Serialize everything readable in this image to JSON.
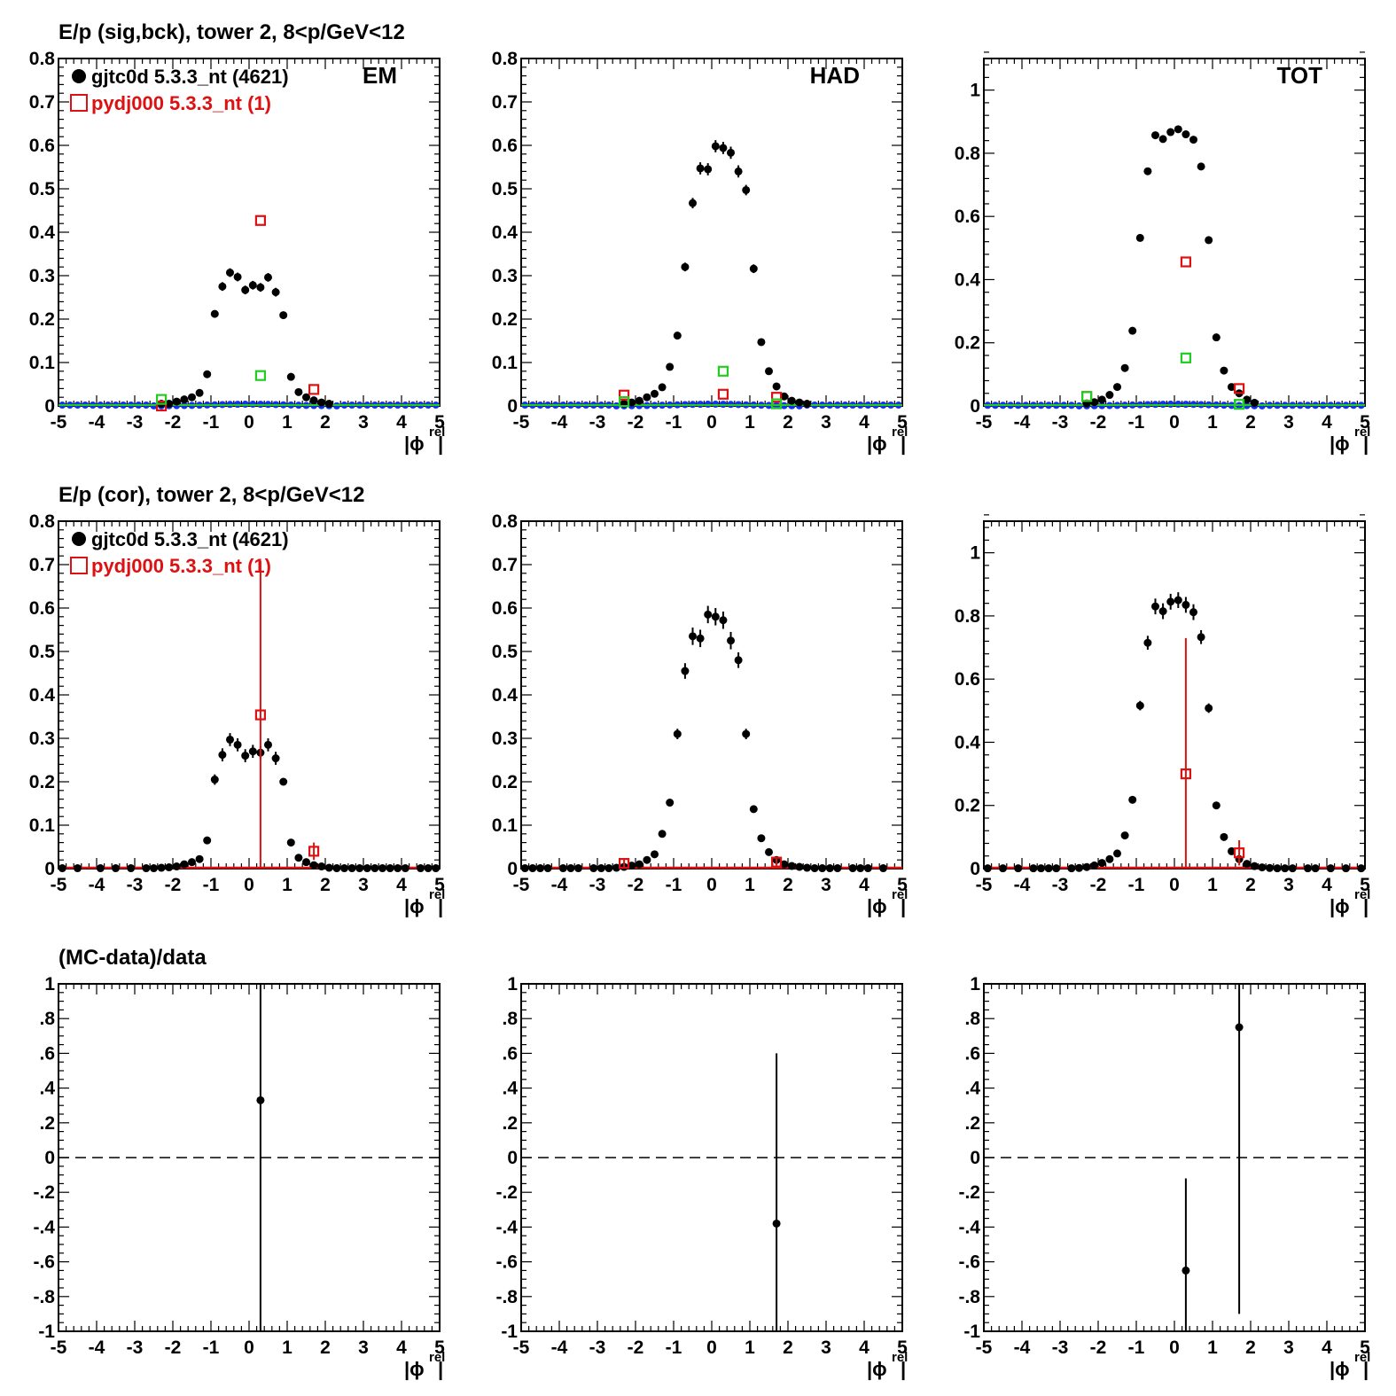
{
  "row_titles": [
    "E/p (sig,bck), tower 2,  8<p/GeV<12",
    "E/p (cor), tower 2,  8<p/GeV<12",
    "(MC-data)/data"
  ],
  "legend": {
    "data_label": "gjtc0d 5.3.3_nt (4621)",
    "mc_label": "pydj000 5.3.3_nt (1)"
  },
  "panel_tags": [
    "EM",
    "HAD",
    "TOT"
  ],
  "axis_label": {
    "main": "|ϕ",
    "superscript": "rel",
    "close": "|"
  },
  "colors": {
    "data": "#000000",
    "mc": "#dd1111",
    "background": "#1133ee",
    "signal_mc": "#22cc22",
    "axis": "#000000"
  },
  "chart_data": [
    {
      "id": "em-sigbck",
      "type": "scatter",
      "tag": "EM",
      "has_legend": true,
      "xlim": [
        -5,
        5
      ],
      "ylim": [
        0,
        0.8
      ],
      "yticks": [
        0,
        0.1,
        0.2,
        0.3,
        0.4,
        0.5,
        0.6,
        0.7,
        0.8
      ],
      "series": [
        {
          "name": "gjtc0d 5.3.3_nt (4621)",
          "style": "data",
          "x": [
            -2.3,
            -2.1,
            -1.9,
            -1.7,
            -1.5,
            -1.3,
            -1.1,
            -0.9,
            -0.7,
            -0.5,
            -0.3,
            -0.1,
            0.1,
            0.3,
            0.5,
            0.7,
            0.9,
            1.1,
            1.3,
            1.5,
            1.7,
            1.9,
            2.1
          ],
          "y": [
            0.005,
            0.005,
            0.01,
            0.015,
            0.02,
            0.03,
            0.073,
            0.212,
            0.275,
            0.307,
            0.297,
            0.267,
            0.278,
            0.273,
            0.296,
            0.262,
            0.209,
            0.067,
            0.032,
            0.02,
            0.013,
            0.008,
            0.005
          ],
          "err": [
            0,
            0,
            0,
            0,
            0,
            0,
            0,
            0.008,
            0.01,
            0.01,
            0.01,
            0.01,
            0.01,
            0.01,
            0.01,
            0.01,
            0.008,
            0,
            0,
            0,
            0,
            0,
            0
          ]
        },
        {
          "name": "pydj000 5.3.3_nt (1)",
          "style": "mc",
          "x": [
            -2.3,
            0.3,
            1.7
          ],
          "y": [
            0.0,
            0.427,
            0.038
          ],
          "err": [
            0,
            0,
            0
          ]
        },
        {
          "name": "",
          "style": "signal",
          "x": [
            -2.3,
            0.3
          ],
          "y": [
            0.015,
            0.07
          ],
          "err": [
            0,
            0
          ]
        }
      ]
    },
    {
      "id": "had-sigbck",
      "type": "scatter",
      "tag": "HAD",
      "has_legend": false,
      "xlim": [
        -5,
        5
      ],
      "ylim": [
        0,
        0.8
      ],
      "yticks": [
        0,
        0.1,
        0.2,
        0.3,
        0.4,
        0.5,
        0.6,
        0.7,
        0.8
      ],
      "series": [
        {
          "name": "gjtc0d 5.3.3_nt (4621)",
          "style": "data",
          "x": [
            -2.3,
            -2.1,
            -1.9,
            -1.7,
            -1.5,
            -1.3,
            -1.1,
            -0.9,
            -0.7,
            -0.5,
            -0.3,
            -0.1,
            0.1,
            0.3,
            0.5,
            0.7,
            0.9,
            1.1,
            1.3,
            1.5,
            1.7,
            1.9,
            2.1,
            2.3,
            2.5
          ],
          "y": [
            0.005,
            0.008,
            0.012,
            0.02,
            0.028,
            0.043,
            0.09,
            0.162,
            0.32,
            0.467,
            0.547,
            0.545,
            0.598,
            0.594,
            0.583,
            0.54,
            0.497,
            0.316,
            0.147,
            0.08,
            0.045,
            0.022,
            0.012,
            0.008,
            0.005
          ],
          "err": [
            0,
            0,
            0,
            0,
            0,
            0,
            0,
            0,
            0.01,
            0.012,
            0.014,
            0.014,
            0.014,
            0.014,
            0.014,
            0.014,
            0.012,
            0.01,
            0,
            0,
            0,
            0,
            0,
            0,
            0
          ]
        },
        {
          "name": "pydj000 5.3.3_nt (1)",
          "style": "mc",
          "x": [
            -2.3,
            0.3,
            1.7
          ],
          "y": [
            0.025,
            0.027,
            0.02
          ],
          "err": [
            0,
            0,
            0
          ]
        },
        {
          "name": "",
          "style": "signal",
          "x": [
            -2.3,
            0.3,
            1.7
          ],
          "y": [
            0.01,
            0.08,
            0.005
          ],
          "err": [
            0,
            0,
            0
          ]
        }
      ]
    },
    {
      "id": "tot-sigbck",
      "type": "scatter",
      "tag": "TOT",
      "has_legend": false,
      "xlim": [
        -5,
        5
      ],
      "ylim": [
        0,
        1.1
      ],
      "yticks": [
        0,
        0.2,
        0.4,
        0.6,
        0.8,
        1
      ],
      "series": [
        {
          "name": "gjtc0d 5.3.3_nt (4621)",
          "style": "data",
          "x": [
            -2.3,
            -2.1,
            -1.9,
            -1.7,
            -1.5,
            -1.3,
            -1.1,
            -0.9,
            -0.7,
            -0.5,
            -0.3,
            -0.1,
            0.1,
            0.3,
            0.5,
            0.7,
            0.9,
            1.1,
            1.3,
            1.5,
            1.7,
            1.9,
            2.1
          ],
          "y": [
            0.008,
            0.012,
            0.02,
            0.035,
            0.06,
            0.12,
            0.238,
            0.532,
            0.743,
            0.857,
            0.845,
            0.867,
            0.876,
            0.86,
            0.843,
            0.758,
            0.525,
            0.217,
            0.112,
            0.06,
            0.04,
            0.02,
            0.01
          ],
          "err": [
            0,
            0,
            0,
            0,
            0,
            0,
            0,
            0,
            0,
            0,
            0,
            0,
            0,
            0,
            0,
            0,
            0,
            0,
            0,
            0,
            0,
            0,
            0
          ]
        },
        {
          "name": "pydj000 5.3.3_nt (1)",
          "style": "mc",
          "x": [
            -2.3,
            0.3,
            1.7
          ],
          "y": [
            0.03,
            0.456,
            0.055
          ],
          "err": [
            0,
            0,
            0
          ]
        },
        {
          "name": "",
          "style": "signal",
          "x": [
            -2.3,
            0.3,
            1.7
          ],
          "y": [
            0.03,
            0.152,
            0.005
          ],
          "err": [
            0,
            0,
            0
          ]
        }
      ]
    },
    {
      "id": "em-cor",
      "type": "scatter",
      "tag": "",
      "has_legend": true,
      "xlim": [
        -5,
        5
      ],
      "ylim": [
        0,
        0.8
      ],
      "yticks": [
        0,
        0.1,
        0.2,
        0.3,
        0.4,
        0.5,
        0.6,
        0.7,
        0.8
      ],
      "series": [
        {
          "name": "gjtc0d 5.3.3_nt (4621)",
          "style": "data",
          "x": [
            -4.9,
            -4.5,
            -3.9,
            -3.5,
            -3.1,
            -2.7,
            -2.5,
            -2.3,
            -2.1,
            -1.9,
            -1.7,
            -1.5,
            -1.3,
            -1.1,
            -0.9,
            -0.7,
            -0.5,
            -0.3,
            -0.1,
            0.1,
            0.3,
            0.5,
            0.7,
            0.9,
            1.1,
            1.3,
            1.5,
            1.7,
            1.9,
            2.1,
            2.3,
            2.5,
            2.7,
            2.9,
            3.1,
            3.3,
            3.5,
            3.7,
            3.9,
            4.1,
            4.5,
            4.7,
            4.9
          ],
          "y": [
            0.001,
            0.001,
            0.001,
            0.001,
            0.001,
            0.001,
            0.001,
            0.002,
            0.003,
            0.005,
            0.01,
            0.015,
            0.022,
            0.065,
            0.205,
            0.262,
            0.297,
            0.285,
            0.26,
            0.27,
            0.267,
            0.285,
            0.254,
            0.2,
            0.06,
            0.025,
            0.015,
            0.008,
            0.005,
            0.002,
            0.001,
            0.001,
            0.001,
            0.001,
            0.001,
            0.001,
            0.001,
            0.001,
            0.001,
            0.001,
            0.001,
            0.001,
            0.001
          ],
          "err": [
            0,
            0,
            0,
            0,
            0,
            0,
            0,
            0,
            0,
            0,
            0,
            0,
            0,
            0.006,
            0.012,
            0.015,
            0.015,
            0.015,
            0.015,
            0.015,
            0.015,
            0.015,
            0.015,
            0.008,
            0,
            0,
            0,
            0,
            0,
            0,
            0,
            0,
            0,
            0,
            0,
            0,
            0,
            0,
            0,
            0,
            0,
            0,
            0
          ]
        },
        {
          "name": "pydj000 5.3.3_nt (1)",
          "style": "mc",
          "x": [
            0.3,
            1.7
          ],
          "y": [
            0.354,
            0.04
          ],
          "err": [
            0.354,
            0.02
          ]
        }
      ]
    },
    {
      "id": "had-cor",
      "type": "scatter",
      "tag": "",
      "has_legend": false,
      "xlim": [
        -5,
        5
      ],
      "ylim": [
        0,
        0.8
      ],
      "yticks": [
        0,
        0.1,
        0.2,
        0.3,
        0.4,
        0.5,
        0.6,
        0.7,
        0.8
      ],
      "series": [
        {
          "name": "gjtc0d 5.3.3_nt (4621)",
          "style": "data",
          "x": [
            -4.9,
            -4.7,
            -4.5,
            -4.3,
            -3.9,
            -3.7,
            -3.5,
            -3.1,
            -2.9,
            -2.7,
            -2.5,
            -2.3,
            -2.1,
            -1.9,
            -1.7,
            -1.5,
            -1.3,
            -1.1,
            -0.9,
            -0.7,
            -0.5,
            -0.3,
            -0.1,
            0.1,
            0.3,
            0.5,
            0.7,
            0.9,
            1.1,
            1.3,
            1.5,
            1.7,
            1.9,
            2.1,
            2.3,
            2.5,
            2.7,
            2.9,
            3.1,
            3.3,
            3.7,
            3.9,
            4.1,
            4.5
          ],
          "y": [
            0.001,
            0.001,
            0.001,
            0.001,
            0.001,
            0.001,
            0.001,
            0.001,
            0.001,
            0.001,
            0.002,
            0.004,
            0.007,
            0.01,
            0.02,
            0.033,
            0.08,
            0.152,
            0.31,
            0.455,
            0.535,
            0.53,
            0.585,
            0.58,
            0.572,
            0.525,
            0.48,
            0.31,
            0.137,
            0.07,
            0.038,
            0.02,
            0.01,
            0.006,
            0.004,
            0.002,
            0.001,
            0.001,
            0.001,
            0.001,
            0.001,
            0.001,
            0.001,
            0.001
          ],
          "err": [
            0,
            0,
            0,
            0,
            0,
            0,
            0,
            0,
            0,
            0,
            0,
            0,
            0,
            0,
            0,
            0,
            0,
            0,
            0.012,
            0.018,
            0.02,
            0.02,
            0.02,
            0.02,
            0.02,
            0.02,
            0.018,
            0.012,
            0,
            0,
            0,
            0,
            0,
            0,
            0,
            0,
            0,
            0,
            0,
            0,
            0,
            0,
            0,
            0
          ]
        },
        {
          "name": "pydj000 5.3.3_nt (1)",
          "style": "mc",
          "x": [
            -2.3,
            1.7
          ],
          "y": [
            0.012,
            0.015
          ],
          "err": [
            0.012,
            0.008
          ]
        }
      ]
    },
    {
      "id": "tot-cor",
      "type": "scatter",
      "tag": "",
      "has_legend": false,
      "xlim": [
        -5,
        5
      ],
      "ylim": [
        0,
        1.1
      ],
      "yticks": [
        0,
        0.2,
        0.4,
        0.6,
        0.8,
        1
      ],
      "series": [
        {
          "name": "gjtc0d 5.3.3_nt (4621)",
          "style": "data",
          "x": [
            -4.9,
            -4.5,
            -4.1,
            -3.7,
            -3.5,
            -3.3,
            -3.1,
            -2.7,
            -2.5,
            -2.3,
            -2.1,
            -1.9,
            -1.7,
            -1.5,
            -1.3,
            -1.1,
            -0.9,
            -0.7,
            -0.5,
            -0.3,
            -0.1,
            0.1,
            0.3,
            0.5,
            0.7,
            0.9,
            1.1,
            1.3,
            1.5,
            1.7,
            1.9,
            2.1,
            2.3,
            2.5,
            2.7,
            2.9,
            3.1,
            3.5,
            3.7,
            4.1,
            4.5,
            4.9
          ],
          "y": [
            0.001,
            0.001,
            0.001,
            0.001,
            0.001,
            0.001,
            0.001,
            0.001,
            0.002,
            0.005,
            0.01,
            0.018,
            0.03,
            0.048,
            0.105,
            0.218,
            0.516,
            0.715,
            0.83,
            0.815,
            0.845,
            0.85,
            0.835,
            0.812,
            0.733,
            0.508,
            0.2,
            0.1,
            0.055,
            0.03,
            0.015,
            0.008,
            0.004,
            0.002,
            0.001,
            0.001,
            0.001,
            0.001,
            0.001,
            0.001,
            0.001,
            0.001
          ],
          "err": [
            0,
            0,
            0,
            0,
            0,
            0,
            0,
            0,
            0,
            0,
            0,
            0,
            0,
            0,
            0,
            0,
            0.015,
            0.022,
            0.025,
            0.025,
            0.025,
            0.025,
            0.025,
            0.025,
            0.022,
            0.015,
            0,
            0,
            0,
            0,
            0,
            0,
            0,
            0,
            0,
            0,
            0,
            0,
            0,
            0,
            0,
            0
          ]
        },
        {
          "name": "pydj000 5.3.3_nt (1)",
          "style": "mc",
          "x": [
            0.3,
            1.7
          ],
          "y": [
            0.3,
            0.05
          ],
          "err": [
            0.43,
            0.04
          ]
        }
      ]
    },
    {
      "id": "em-ratio",
      "type": "scatter",
      "tag": "",
      "has_legend": false,
      "zero_line": true,
      "xlim": [
        -5,
        5
      ],
      "ylim": [
        -1,
        1
      ],
      "yticks": [
        -1,
        -0.8,
        -0.6,
        -0.4,
        -0.2,
        0,
        0.2,
        0.4,
        0.6,
        0.8,
        1
      ],
      "series": [
        {
          "name": "",
          "style": "data",
          "x": [
            0.3
          ],
          "y": [
            0.33
          ],
          "err": [
            2.0
          ]
        }
      ]
    },
    {
      "id": "had-ratio",
      "type": "scatter",
      "tag": "",
      "has_legend": false,
      "zero_line": true,
      "xlim": [
        -5,
        5
      ],
      "ylim": [
        -1,
        1
      ],
      "yticks": [
        -1,
        -0.8,
        -0.6,
        -0.4,
        -0.2,
        0,
        0.2,
        0.4,
        0.6,
        0.8,
        1
      ],
      "series": [
        {
          "name": "",
          "style": "data",
          "x": [
            1.7
          ],
          "y": [
            -0.38
          ],
          "err": [
            0.98
          ]
        }
      ]
    },
    {
      "id": "tot-ratio",
      "type": "scatter",
      "tag": "",
      "has_legend": false,
      "zero_line": true,
      "xlim": [
        -5,
        5
      ],
      "ylim": [
        -1,
        1
      ],
      "yticks": [
        -1,
        -0.8,
        -0.6,
        -0.4,
        -0.2,
        0,
        0.2,
        0.4,
        0.6,
        0.8,
        1
      ],
      "series": [
        {
          "name": "",
          "style": "data",
          "x": [
            0.3,
            1.7
          ],
          "y": [
            -0.65,
            0.75
          ],
          "err": [
            0.53,
            1.65
          ]
        }
      ]
    }
  ]
}
